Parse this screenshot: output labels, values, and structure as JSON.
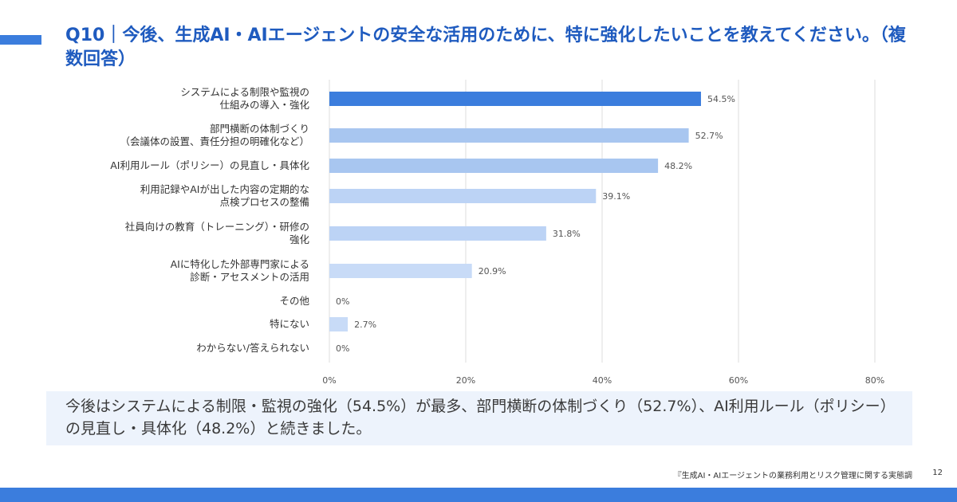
{
  "slide": {
    "title": "Q10｜今後、生成AI・AIエージェントの安全な活用のために、特に強化したいことを教えてください。（複数回答）",
    "summary": "今後はシステムによる制限・監視の強化（54.5%）が最多、部門横断の体制づくり（52.7%）、AI利用ルール（ポリシー）の見直し・具体化（48.2%）と続きました。",
    "source": "『生成AI・AIエージェントの業務利用とリスク管理に関する実態調",
    "page_number": "12",
    "accent_color": "#3b7ddd"
  },
  "chart_data": {
    "type": "bar",
    "orientation": "horizontal",
    "title": "",
    "xlabel": "",
    "ylabel": "",
    "xlim": [
      0,
      80
    ],
    "x_ticks": [
      "0%",
      "20%",
      "40%",
      "60%",
      "80%"
    ],
    "grid": true,
    "categories": [
      [
        "システムによる制限や監視の",
        "仕組みの導入・強化"
      ],
      [
        "部門横断の体制づくり",
        "（会議体の設置、責任分担の明確化など）"
      ],
      [
        "AI利用ルール（ポリシー）の見直し・具体化"
      ],
      [
        "利用記録やAIが出した内容の定期的な",
        "点検プロセスの整備"
      ],
      [
        "社員向けの教育（トレーニング）・研修の",
        "強化"
      ],
      [
        "AIに特化した外部専門家による",
        "診断・アセスメントの活用"
      ],
      [
        "その他"
      ],
      [
        "特にない"
      ],
      [
        "わからない/答えられない"
      ]
    ],
    "values": [
      54.5,
      52.7,
      48.2,
      39.1,
      31.8,
      20.9,
      0,
      2.7,
      0
    ],
    "value_labels": [
      "54.5%",
      "52.7%",
      "48.2%",
      "39.1%",
      "31.8%",
      "20.9%",
      "0%",
      "2.7%",
      "0%"
    ],
    "colors": [
      "#3b7ddd",
      "#a8c6f0",
      "#a8c6f0",
      "#bcd3f5",
      "#bcd3f5",
      "#c8dbf7",
      "#d4e3f9",
      "#c8dbf7",
      "#d4e3f9"
    ]
  }
}
